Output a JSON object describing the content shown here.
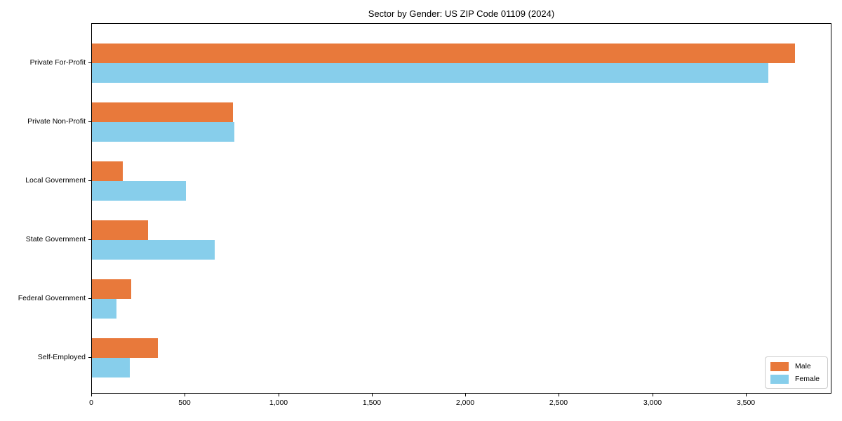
{
  "title": "Sector by Gender: US ZIP Code 01109 (2024)",
  "chart_data": {
    "type": "bar",
    "orientation": "horizontal",
    "title": "Sector by Gender: US ZIP Code 01109 (2024)",
    "categories": [
      "Private For-Profit",
      "Private Non-Profit",
      "Local Government",
      "State Government",
      "Federal Government",
      "Self-Employed"
    ],
    "series": [
      {
        "name": "Male",
        "color": "#e8793b",
        "values": [
          3760,
          755,
          165,
          300,
          210,
          352
        ]
      },
      {
        "name": "Female",
        "color": "#87ceeb",
        "values": [
          3616,
          762,
          503,
          658,
          130,
          202
        ]
      }
    ],
    "xlabel": "",
    "ylabel": "",
    "xlim": [
      0,
      3950
    ],
    "x_ticks": [
      0,
      500,
      1000,
      1500,
      2000,
      2500,
      3000,
      3500
    ],
    "x_tick_labels": [
      "0",
      "500",
      "1,000",
      "1,500",
      "2,000",
      "2,500",
      "3,000",
      "3,500"
    ],
    "grid": false,
    "legend_position": "lower right",
    "background_color": "#ffffff",
    "axis_color": "#000000"
  }
}
